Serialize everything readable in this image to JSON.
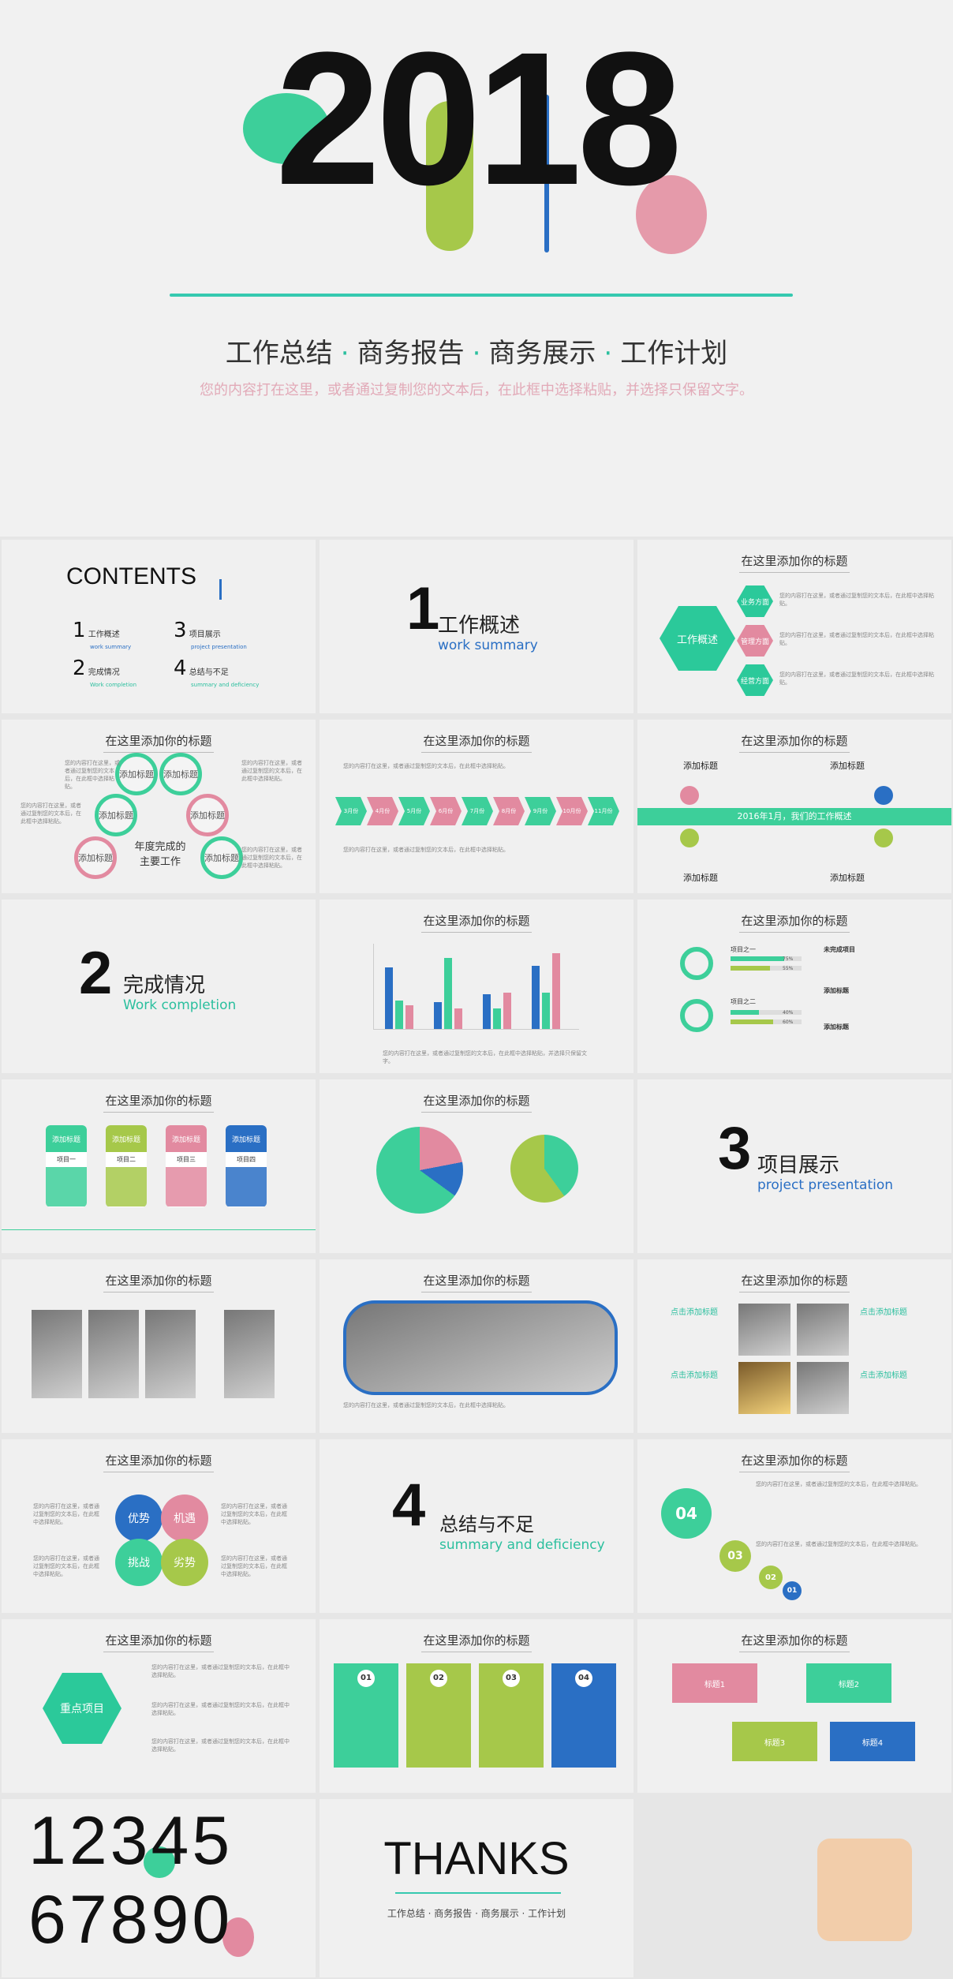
{
  "cover": {
    "year": "2018",
    "subtitle_items": [
      "工作总结",
      "商务报告",
      "商务展示",
      "工作计划"
    ],
    "tagline": "您的内容打在这里，或者通过复制您的文本后，在此框中选择粘贴，并选择只保留文字。"
  },
  "common": {
    "slide_title": "在这里添加你的标题",
    "body": "您的内容打在这里，或者通过复制您的文本后，在此框中选择粘贴。"
  },
  "contents": {
    "title": "CONTENTS",
    "items": [
      {
        "num": "1",
        "label": "工作概述",
        "en": "work summary"
      },
      {
        "num": "2",
        "label": "完成情况",
        "en": "Work completion"
      },
      {
        "num": "3",
        "label": "项目展示",
        "en": "project presentation"
      },
      {
        "num": "4",
        "label": "总结与不足",
        "en": "summary and deficiency"
      }
    ]
  },
  "sections": [
    {
      "num": "1",
      "title": "工作概述",
      "en": "work summary"
    },
    {
      "num": "2",
      "title": "完成情况",
      "en": "Work completion"
    },
    {
      "num": "3",
      "title": "项目展示",
      "en": "project presentation"
    },
    {
      "num": "4",
      "title": "总结与不足",
      "en": "summary and deficiency"
    }
  ],
  "hex_slide": {
    "main": "工作概述",
    "items": [
      "业务方面",
      "管理方面",
      "经营方面"
    ]
  },
  "rings_slide": {
    "rings": [
      "添加标题",
      "添加标题",
      "添加标题",
      "添加标题",
      "添加标题",
      "添加标题"
    ],
    "center": "年度完成的主要工作"
  },
  "arrows_slide": {
    "months": [
      "3月份",
      "4月份",
      "5月份",
      "6月份",
      "7月份",
      "8月份",
      "9月份",
      "10月份",
      "11月份"
    ]
  },
  "timeline_slide": {
    "banner": "2016年1月，我们的工作概述",
    "labels": [
      "添加标题",
      "添加标题",
      "添加标题",
      "添加标题"
    ]
  },
  "bar_slide": {
    "caption": "您的内容打在这里，或者通过复制您的文本后，在此框中选择粘贴，并选择只保留文字。"
  },
  "magnifier_slide": {
    "items": [
      "项目之一",
      "项目之二"
    ],
    "side": [
      "未完成项目",
      "添加标题",
      "添加标题"
    ],
    "pct": [
      "75%",
      "55%",
      "40%",
      "60%"
    ]
  },
  "cards_slide": {
    "cards": [
      {
        "head": "添加标题",
        "label": "项目一"
      },
      {
        "head": "添加标题",
        "label": "项目二"
      },
      {
        "head": "添加标题",
        "label": "项目三"
      },
      {
        "head": "添加标题",
        "label": "项目四"
      }
    ]
  },
  "photo_text_slide": {
    "labels": [
      "点击添加标题",
      "点击添加标题",
      "点击添加标题",
      "点击添加标题"
    ]
  },
  "swot_slide": {
    "items": [
      "优势",
      "机遇",
      "挑战",
      "劣势"
    ]
  },
  "numbered_slide": {
    "nums": [
      "04",
      "03",
      "02",
      "01"
    ]
  },
  "key_slide": {
    "main": "重点项目"
  },
  "four_cols": {
    "nums": [
      "01",
      "02",
      "03",
      "04"
    ]
  },
  "labels_slide": {
    "labels": [
      "标题1",
      "标题2",
      "标题3",
      "标题4"
    ]
  },
  "digits": {
    "row1": "12345",
    "row2": "67890"
  },
  "thanks": {
    "title": "THANKS",
    "subtitle": "工作总结 · 商务报告 · 商务展示 · 工作计划"
  }
}
